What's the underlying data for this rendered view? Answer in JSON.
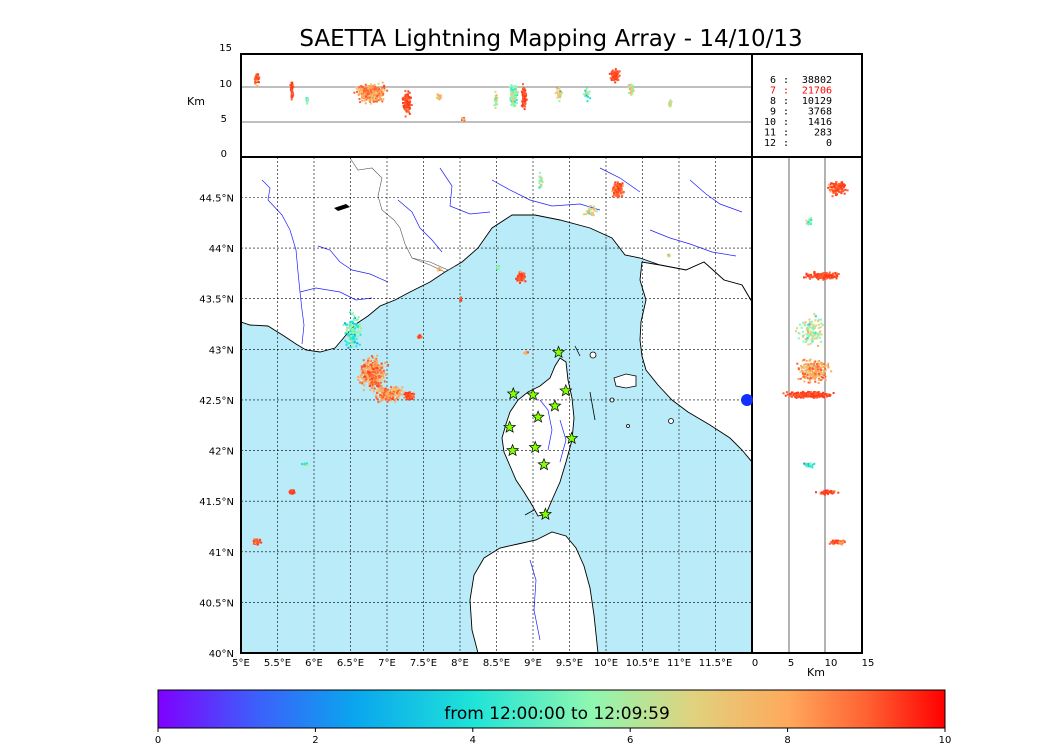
{
  "title": "SAETTA Lightning Mapping Array - 14/10/13",
  "height_axis_label": "Km",
  "height_ticks": [
    "15",
    "10",
    "5",
    "0"
  ],
  "side_ticks": [
    "0",
    "5",
    "10",
    "15"
  ],
  "lon_ticks": [
    "5°E",
    "5.5°E",
    "6°E",
    "6.5°E",
    "7°E",
    "7.5°E",
    "8°E",
    "8.5°E",
    "9°E",
    "9.5°E",
    "10°E",
    "10.5°E",
    "11°E",
    "11.5°E"
  ],
  "lat_ticks": [
    "44.5°N",
    "44°N",
    "43.5°N",
    "43°N",
    "42.5°N",
    "42°N",
    "41.5°N",
    "41°N",
    "40.5°N",
    "40°N"
  ],
  "station_counts": [
    {
      "stations": "6",
      "sep": ":",
      "count": "38802",
      "color": "#000000"
    },
    {
      "stations": "7",
      "sep": ":",
      "count": "21706",
      "color": "#ff0000"
    },
    {
      "stations": "8",
      "sep": ":",
      "count": "10129",
      "color": "#000000"
    },
    {
      "stations": "9",
      "sep": ":",
      "count": "3768",
      "color": "#000000"
    },
    {
      "stations": "10",
      "sep": ":",
      "count": "1416",
      "color": "#000000"
    },
    {
      "stations": "11",
      "sep": ":",
      "count": "283",
      "color": "#000000"
    },
    {
      "stations": "12",
      "sep": ":",
      "count": "0",
      "color": "#000000"
    }
  ],
  "colorbar": {
    "label": "from 12:00:00 to 12:09:59",
    "ticks": [
      "0",
      "2",
      "4",
      "6",
      "8",
      "10"
    ],
    "gradient": [
      "#7f00ff",
      "#2f6ff9",
      "#00b4eb",
      "#1fe8d3",
      "#7ff9b4",
      "#d0e28a",
      "#ffb460",
      "#ff6a36",
      "#ff0000"
    ]
  },
  "map_colors": {
    "sea": "#b9ecf8",
    "land": "#ffffff",
    "rivers": "#2020ff",
    "border": "#000000"
  },
  "stations": {
    "marker": "star-icon",
    "fill": "#7fff00",
    "count": 13
  }
}
